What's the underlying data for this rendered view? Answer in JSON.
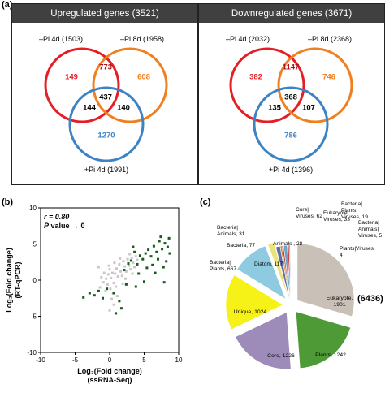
{
  "panel_labels": {
    "a": "(a)",
    "b": "(b)",
    "c": "(c)"
  },
  "venn_up": {
    "title": "Upregulated genes (3521)",
    "label_a": "–Pi 4d (1503)",
    "label_b": "–Pi 8d (1958)",
    "label_c": "+Pi 4d (1991)",
    "only_a": "149",
    "ab": "773",
    "only_b": "608",
    "ac": "144",
    "abc": "437",
    "bc": "140",
    "only_c": "1270"
  },
  "venn_down": {
    "title": "Downregulated genes (3671)",
    "label_a": "–Pi 4d (2032)",
    "label_b": "–Pi 8d (2368)",
    "label_c": "+Pi 4d (1396)",
    "only_a": "382",
    "ab": "1147",
    "only_b": "746",
    "ac": "135",
    "abc": "368",
    "bc": "107",
    "only_c": "786"
  },
  "colors": {
    "red": "#e51e25",
    "orange": "#f07f1f",
    "blue": "#3c83c5",
    "dark_green": "#1a5a1a",
    "light_gray": "#c8c8c8"
  },
  "scatter": {
    "stat_r": "r = 0.80",
    "stat_p_label": "P",
    "stat_p_rest": " value → 0",
    "ylabel_line1": "Log₂(Fold change)",
    "ylabel_line2": "(RT-qPCR)",
    "xlabel_line1": "Log₂(Fold change)",
    "xlabel_line2": "(ssRNA-Seq)"
  },
  "chart_data": {
    "type": "scatter",
    "xlim": [
      -10,
      10
    ],
    "ylim": [
      -10,
      10
    ],
    "xticks": [
      "-10",
      "-5",
      "0",
      "5",
      "10"
    ],
    "yticks": [
      "-10",
      "-5",
      "0",
      "5",
      "10"
    ],
    "series": [
      {
        "name": "",
        "color": "#c8c8c8",
        "points": [
          [
            -1.2,
            0.4
          ],
          [
            -0.8,
            1.0
          ],
          [
            -0.5,
            0.2
          ],
          [
            -0.2,
            0.8
          ],
          [
            0.0,
            1.5
          ],
          [
            0.2,
            0.3
          ],
          [
            0.4,
            1.0
          ],
          [
            0.6,
            -0.4
          ],
          [
            0.8,
            0.9
          ],
          [
            1.0,
            1.6
          ],
          [
            1.2,
            0.5
          ],
          [
            1.4,
            2.2
          ],
          [
            1.6,
            1.2
          ],
          [
            1.8,
            0.6
          ],
          [
            2.0,
            2.6
          ],
          [
            2.2,
            1.9
          ],
          [
            2.4,
            1.2
          ],
          [
            2.6,
            2.9
          ],
          [
            2.8,
            2.0
          ],
          [
            3.0,
            1.5
          ],
          [
            3.2,
            3.1
          ],
          [
            3.4,
            2.4
          ],
          [
            3.6,
            1.8
          ],
          [
            3.8,
            3.3
          ],
          [
            4.0,
            2.8
          ],
          [
            -0.3,
            -0.6
          ],
          [
            0.1,
            -1.2
          ],
          [
            0.5,
            -1.8
          ],
          [
            -0.6,
            -1.5
          ],
          [
            0.9,
            -0.9
          ],
          [
            1.1,
            -2.2
          ],
          [
            -0.9,
            -0.3
          ],
          [
            0.3,
            -2.6
          ],
          [
            -1.4,
            -1.0
          ],
          [
            0.7,
            2.4
          ],
          [
            1.5,
            3.0
          ],
          [
            -0.1,
            2.0
          ],
          [
            2.3,
            0.2
          ],
          [
            1.9,
            -0.5
          ],
          [
            0.0,
            -4.2
          ],
          [
            0.6,
            -3.4
          ],
          [
            -1.6,
            1.8
          ],
          [
            2.9,
            3.6
          ],
          [
            3.3,
            0.9
          ]
        ]
      },
      {
        "name": "",
        "color": "#1a5a1a",
        "points": [
          [
            -3.8,
            -2.4
          ],
          [
            -2.9,
            -1.8
          ],
          [
            -2.2,
            -2.1
          ],
          [
            -1.6,
            -1.5
          ],
          [
            -1.0,
            -2.5
          ],
          [
            -0.4,
            -1.2
          ],
          [
            0.6,
            -1.8
          ],
          [
            1.4,
            -2.9
          ],
          [
            1.7,
            -3.9
          ],
          [
            0.9,
            -4.6
          ],
          [
            2.1,
            1.4
          ],
          [
            2.7,
            2.3
          ],
          [
            3.1,
            2.7
          ],
          [
            3.6,
            3.9
          ],
          [
            4.0,
            2.2
          ],
          [
            4.4,
            3.4
          ],
          [
            4.8,
            2.9
          ],
          [
            5.2,
            3.7
          ],
          [
            5.6,
            4.2
          ],
          [
            6.0,
            3.3
          ],
          [
            6.4,
            4.7
          ],
          [
            6.8,
            3.9
          ],
          [
            7.2,
            5.4
          ],
          [
            7.6,
            4.3
          ],
          [
            8.0,
            5.1
          ],
          [
            8.4,
            4.6
          ],
          [
            8.7,
            3.7
          ],
          [
            4.2,
            0.9
          ],
          [
            5.4,
            1.7
          ],
          [
            6.2,
            2.1
          ],
          [
            7.0,
            2.9
          ],
          [
            7.8,
            1.8
          ],
          [
            8.2,
            2.6
          ],
          [
            6.6,
            1.0
          ],
          [
            5.0,
            -0.2
          ],
          [
            3.8,
            -0.9
          ],
          [
            7.4,
            6.0
          ],
          [
            8.6,
            5.8
          ],
          [
            2.4,
            -0.6
          ],
          [
            3.4,
            4.6
          ],
          [
            7.9,
            -0.3
          ]
        ]
      }
    ]
  },
  "pie": {
    "total": "(6436)",
    "segments": [
      {
        "label_line1": "Eukaryote,",
        "label_line2": "1901",
        "value": 1901,
        "color": "#c9c0b8"
      },
      {
        "label_line1": "Plants, 1242",
        "label_line2": "",
        "value": 1242,
        "color": "#4e9a36"
      },
      {
        "label_line1": "Core, 1226",
        "label_line2": "",
        "value": 1226,
        "color": "#9d8cba"
      },
      {
        "label_line1": "Unique, 1024",
        "label_line2": "",
        "value": 1024,
        "color": "#f6f116"
      },
      {
        "label_line1": "Bacteria|",
        "label_line2": "Plants, 667",
        "value": 667,
        "color": "#8ecbe0"
      },
      {
        "label_line1": "Diatom, 117",
        "label_line2": "",
        "value": 117,
        "color": "#ece27a"
      },
      {
        "label_line1": "Bacteria, 77",
        "label_line2": "",
        "value": 77,
        "color": "#5b6fa8"
      },
      {
        "label_line1": "Bacteria|",
        "label_line2": "Animals, 31",
        "value": 31,
        "color": "#e07d2e"
      },
      {
        "label_line1": "Animals , 28",
        "label_line2": "",
        "value": 28,
        "color": "#9e3a3a"
      },
      {
        "label_line1": "Core|",
        "label_line2": "Viruses, 62",
        "value": 62,
        "color": "#6aa4c8"
      },
      {
        "label_line1": "Eukaryote|",
        "label_line2": "Viruses, 33",
        "value": 33,
        "color": "#c24a4a"
      },
      {
        "label_line1": "Bacteria|",
        "label_line2": "Plants|",
        "label_line3": "Viruses, 19",
        "value": 19,
        "color": "#8a7bb0"
      },
      {
        "label_line1": "Bacteria|",
        "label_line2": "Animals|",
        "label_line3": "Viruses, 5",
        "value": 5,
        "color": "#4aa06a"
      },
      {
        "label_line1": "Plants|Viruses,",
        "label_line2": "4",
        "value": 4,
        "color": "#e6a05a"
      }
    ]
  }
}
